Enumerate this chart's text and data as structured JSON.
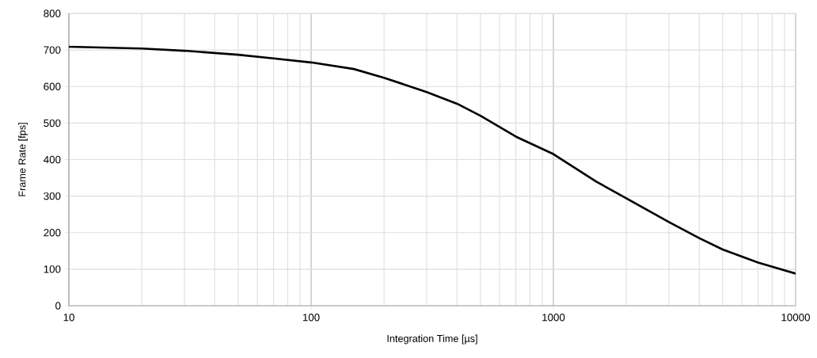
{
  "chart_data": {
    "type": "line",
    "xlabel": "Integration Time [µs]",
    "ylabel": "Frame Rate [fps]",
    "log": "x",
    "grid": true,
    "color": "#000000",
    "x": [
      10,
      20,
      30,
      50,
      70,
      100,
      150,
      200,
      300,
      400,
      500,
      700,
      1000,
      1500,
      2000,
      3000,
      4000,
      5000,
      7000,
      10000
    ],
    "values": [
      709,
      704,
      698,
      687,
      677,
      666,
      648,
      624,
      585,
      553,
      520,
      463,
      415,
      340,
      294,
      229,
      185,
      154,
      118,
      88
    ],
    "xlim": [
      10,
      10000
    ],
    "ylim": [
      0,
      800
    ],
    "xticks": [
      10,
      {
        "value": 20,
        "label": null
      },
      {
        "value": 30,
        "label": null
      },
      {
        "value": 40,
        "label": null
      },
      {
        "value": 50,
        "label": null
      },
      {
        "value": 60,
        "label": null
      },
      {
        "value": 70,
        "label": null
      },
      {
        "value": 80,
        "label": null
      },
      {
        "value": 90,
        "label": null
      },
      100,
      {
        "value": 200,
        "label": null
      },
      {
        "value": 300,
        "label": null
      },
      {
        "value": 400,
        "label": null
      },
      {
        "value": 500,
        "label": null
      },
      {
        "value": 600,
        "label": null
      },
      {
        "value": 700,
        "label": null
      },
      {
        "value": 800,
        "label": null
      },
      {
        "value": 900,
        "label": null
      },
      1000,
      {
        "value": 2000,
        "label": null
      },
      {
        "value": 3000,
        "label": null
      },
      {
        "value": 4000,
        "label": null
      },
      {
        "value": 5000,
        "label": null
      },
      {
        "value": 6000,
        "label": null
      },
      {
        "value": 7000,
        "label": null
      },
      {
        "value": 8000,
        "label": null
      },
      {
        "value": 9000,
        "label": null
      },
      10000
    ],
    "yticks": [
      0,
      100,
      200,
      300,
      400,
      500,
      600,
      700,
      800
    ]
  }
}
